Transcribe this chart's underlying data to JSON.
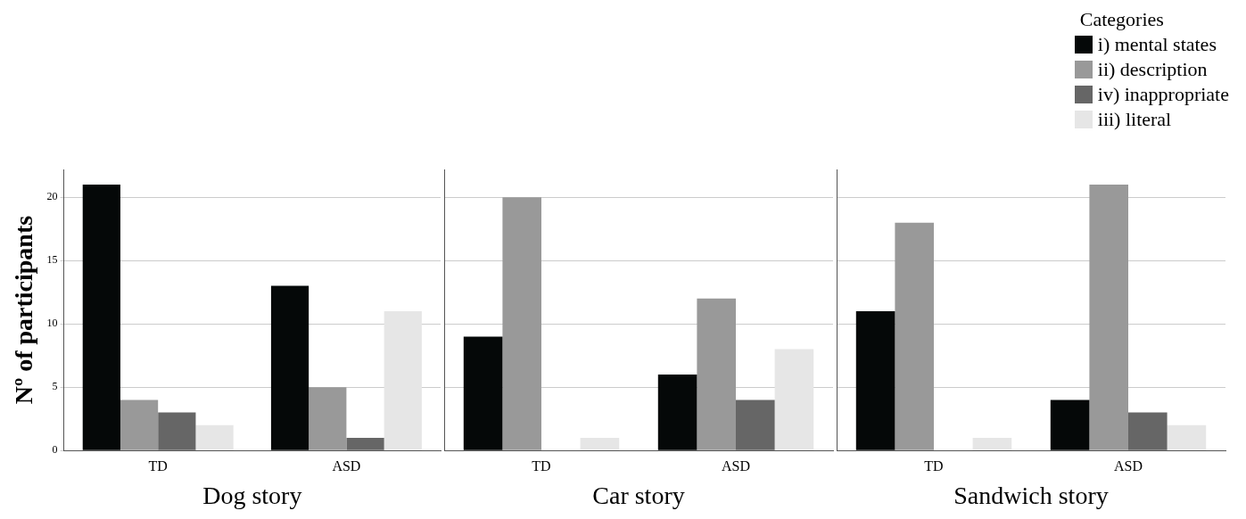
{
  "chart_data": [
    {
      "type": "bar",
      "xlabel": "Dog story",
      "ylabel": "Nº of participants",
      "categories": [
        "TD",
        "ASD"
      ],
      "ylim": [
        0,
        22.2
      ],
      "yticks": [
        0,
        5,
        10,
        15,
        20
      ],
      "grid": "y",
      "series": [
        {
          "color": "#050808",
          "values": [
            21,
            13
          ]
        },
        {
          "color": "#999999",
          "values": [
            4,
            5
          ]
        },
        {
          "color": "#666666",
          "values": [
            3,
            1
          ]
        },
        {
          "color": "#e6e6e6",
          "values": [
            2,
            11
          ]
        }
      ]
    },
    {
      "type": "bar",
      "xlabel": "Car story",
      "categories": [
        "TD",
        "ASD"
      ],
      "ylim": [
        0,
        22.2
      ],
      "yticks": [
        0,
        5,
        10,
        15,
        20
      ],
      "grid": "y",
      "tick_labels": "x",
      "series": [
        {
          "color": "#050808",
          "values": [
            9,
            6
          ]
        },
        {
          "color": "#999999",
          "values": [
            20,
            12
          ]
        },
        {
          "color": "#666666",
          "values": [
            0,
            4
          ]
        },
        {
          "color": "#e6e6e6",
          "values": [
            1,
            8
          ]
        }
      ]
    },
    {
      "type": "bar",
      "xlabel": "Sandwich story",
      "categories": [
        "TD",
        "ASD"
      ],
      "ylim": [
        0,
        22.2
      ],
      "yticks": [
        0,
        5,
        10,
        15,
        20
      ],
      "grid": "y",
      "tick_labels": "x",
      "legend": "top right",
      "legend_title": "Categories",
      "series": [
        {
          "name": "i) mental states",
          "color": "#050808",
          "values": [
            11,
            4
          ]
        },
        {
          "name": "ii) description",
          "color": "#999999",
          "values": [
            18,
            21
          ]
        },
        {
          "name": "iv) inappropriate",
          "color": "#666666",
          "values": [
            0,
            3
          ]
        },
        {
          "name": "iii) literal",
          "color": "#e6e6e6",
          "values": [
            1,
            2
          ]
        }
      ]
    }
  ]
}
